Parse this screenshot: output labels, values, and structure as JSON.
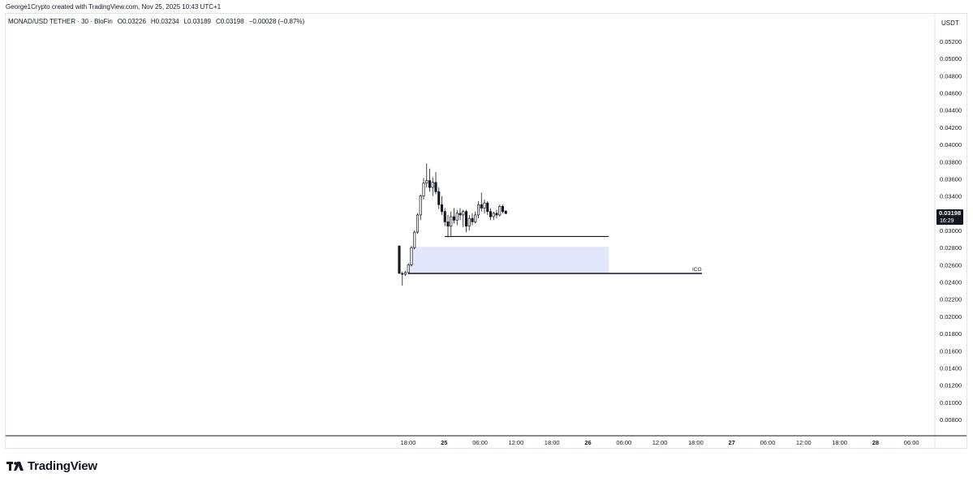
{
  "header": {
    "credit": "George1Crypto created with TradingView.com, Nov 25, 2025 10:43 UTC+1"
  },
  "legend": {
    "symbol": "MONAD/USD TETHER · 30 · BloFin",
    "open": "O0.03226",
    "high": "H0.03234",
    "low": "L0.03189",
    "close": "C0.03198",
    "change": "−0.00028 (−0.87%)"
  },
  "price_axis": {
    "unit": "USDT",
    "last_price": "0.03198",
    "countdown": "16:29"
  },
  "brand": {
    "name": "TradingView"
  },
  "colors": {
    "candle": "#131722",
    "zone": "#e3e7fb",
    "label_bg": "#131722",
    "background": "#ffffff"
  },
  "chart_data": {
    "type": "candlestick",
    "y_tick_labels": [
      "0.05200",
      "0.05000",
      "0.04800",
      "0.04600",
      "0.04400",
      "0.04200",
      "0.04000",
      "0.03800",
      "0.03600",
      "0.03400",
      "0.03200",
      "0.03000",
      "0.02800",
      "0.02600",
      "0.02400",
      "0.02200",
      "0.02000",
      "0.01800",
      "0.01600",
      "0.01400",
      "0.01200",
      "0.01000",
      "0.00800"
    ],
    "y_ticks": [
      0.052,
      0.05,
      0.048,
      0.046,
      0.044,
      0.042,
      0.04,
      0.038,
      0.036,
      0.034,
      0.032,
      0.03,
      0.028,
      0.026,
      0.024,
      0.022,
      0.02,
      0.018,
      0.016,
      0.014,
      0.012,
      0.01,
      0.008
    ],
    "x_tick_labels": [
      "18:00",
      "25",
      "06:00",
      "12:00",
      "18:00",
      "26",
      "06:00",
      "12:00",
      "18:00",
      "27",
      "06:00",
      "12:00",
      "18:00",
      "28",
      "06:00"
    ],
    "x_tick_bold": [
      false,
      true,
      false,
      false,
      false,
      true,
      false,
      false,
      false,
      true,
      false,
      false,
      false,
      true,
      false
    ],
    "candles": [
      {
        "o": 0.0282,
        "h": 0.0282,
        "l": 0.025,
        "c": 0.025
      },
      {
        "o": 0.025,
        "h": 0.0252,
        "l": 0.0236,
        "c": 0.0249
      },
      {
        "o": 0.0249,
        "h": 0.0253,
        "l": 0.0247,
        "c": 0.0251
      },
      {
        "o": 0.0251,
        "h": 0.0262,
        "l": 0.0249,
        "c": 0.026
      },
      {
        "o": 0.026,
        "h": 0.0282,
        "l": 0.0258,
        "c": 0.028
      },
      {
        "o": 0.028,
        "h": 0.03,
        "l": 0.0278,
        "c": 0.0298
      },
      {
        "o": 0.0298,
        "h": 0.032,
        "l": 0.0296,
        "c": 0.0318
      },
      {
        "o": 0.0318,
        "h": 0.0342,
        "l": 0.0312,
        "c": 0.034
      },
      {
        "o": 0.034,
        "h": 0.0361,
        "l": 0.0336,
        "c": 0.0355
      },
      {
        "o": 0.0355,
        "h": 0.0378,
        "l": 0.035,
        "c": 0.0358
      },
      {
        "o": 0.0358,
        "h": 0.0372,
        "l": 0.0345,
        "c": 0.035
      },
      {
        "o": 0.035,
        "h": 0.0362,
        "l": 0.034,
        "c": 0.0356
      },
      {
        "o": 0.0356,
        "h": 0.0368,
        "l": 0.0342,
        "c": 0.0345
      },
      {
        "o": 0.0345,
        "h": 0.035,
        "l": 0.0325,
        "c": 0.033
      },
      {
        "o": 0.033,
        "h": 0.034,
        "l": 0.0318,
        "c": 0.0322
      },
      {
        "o": 0.0322,
        "h": 0.0326,
        "l": 0.0305,
        "c": 0.031
      },
      {
        "o": 0.031,
        "h": 0.0318,
        "l": 0.0292,
        "c": 0.0305
      },
      {
        "o": 0.0305,
        "h": 0.0322,
        "l": 0.0292,
        "c": 0.0316
      },
      {
        "o": 0.0316,
        "h": 0.0326,
        "l": 0.0308,
        "c": 0.0312
      },
      {
        "o": 0.0312,
        "h": 0.0324,
        "l": 0.0306,
        "c": 0.032
      },
      {
        "o": 0.032,
        "h": 0.0326,
        "l": 0.0312,
        "c": 0.0318
      },
      {
        "o": 0.0318,
        "h": 0.0324,
        "l": 0.0304,
        "c": 0.0322
      },
      {
        "o": 0.0322,
        "h": 0.0324,
        "l": 0.0298,
        "c": 0.0305
      },
      {
        "o": 0.0305,
        "h": 0.0318,
        "l": 0.03,
        "c": 0.0314
      },
      {
        "o": 0.0314,
        "h": 0.032,
        "l": 0.0306,
        "c": 0.031
      },
      {
        "o": 0.031,
        "h": 0.0322,
        "l": 0.0308,
        "c": 0.0318
      },
      {
        "o": 0.0318,
        "h": 0.0334,
        "l": 0.0314,
        "c": 0.033
      },
      {
        "o": 0.033,
        "h": 0.0344,
        "l": 0.0322,
        "c": 0.0326
      },
      {
        "o": 0.0326,
        "h": 0.0336,
        "l": 0.032,
        "c": 0.0332
      },
      {
        "o": 0.0332,
        "h": 0.0334,
        "l": 0.0318,
        "c": 0.0322
      },
      {
        "o": 0.0322,
        "h": 0.0326,
        "l": 0.0312,
        "c": 0.0316
      },
      {
        "o": 0.0316,
        "h": 0.0322,
        "l": 0.0312,
        "c": 0.032
      },
      {
        "o": 0.032,
        "h": 0.0324,
        "l": 0.0314,
        "c": 0.0318
      },
      {
        "o": 0.0318,
        "h": 0.033,
        "l": 0.0316,
        "c": 0.0328
      },
      {
        "o": 0.0328,
        "h": 0.033,
        "l": 0.032,
        "c": 0.0322
      },
      {
        "o": 0.03226,
        "h": 0.03234,
        "l": 0.03189,
        "c": 0.03198
      }
    ],
    "zone": {
      "top": 0.0281,
      "bottom": 0.025
    },
    "levels": [
      {
        "price": 0.0293,
        "label": ""
      },
      {
        "price": 0.025,
        "label": "ICO"
      }
    ]
  }
}
